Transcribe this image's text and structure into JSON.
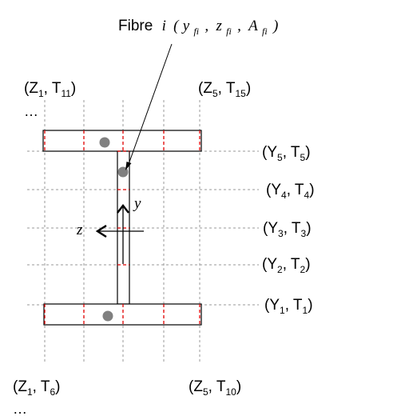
{
  "title": {
    "word": "Fibre",
    "var": "i",
    "open": "(",
    "y": "y",
    "y_sub": "fi",
    "sep1": ",",
    "z": "z",
    "z_sub": "fi",
    "sep2": ",",
    "a": "A",
    "a_sub": "fi",
    "close": ")"
  },
  "top_left": {
    "open": "(Z",
    "sub1": "1",
    "mid": ", T",
    "sub2": "11",
    "close": ")"
  },
  "top_right": {
    "open": "(Z",
    "sub1": "5",
    "mid": ", T",
    "sub2": "15",
    "close": ")"
  },
  "bottom_left": {
    "open": "(Z",
    "sub1": "1",
    "mid": ", T",
    "sub2": "6",
    "close": ")"
  },
  "bottom_right": {
    "open": "(Z",
    "sub1": "5",
    "mid": ", T",
    "sub2": "10",
    "close": ")"
  },
  "ellipsis": "…",
  "rows": [
    {
      "open": "(Y",
      "sub1": "5",
      "mid": ", T",
      "sub2": "5",
      "close": ")"
    },
    {
      "open": "(Y",
      "sub1": "4",
      "mid": ", T",
      "sub2": "4",
      "close": ")"
    },
    {
      "open": "(Y",
      "sub1": "3",
      "mid": ", T",
      "sub2": "3",
      "close": ")"
    },
    {
      "open": "(Y",
      "sub1": "2",
      "mid": ", T",
      "sub2": "2",
      "close": ")"
    },
    {
      "open": "(Y",
      "sub1": "1",
      "mid": ", T",
      "sub2": "1",
      "close": ")"
    }
  ],
  "axis_y": "y",
  "axis_z": "z",
  "colors": {
    "section": "#000000",
    "guide": "#9a9a9a",
    "divider": "#e00000",
    "fibre": "#808080"
  }
}
